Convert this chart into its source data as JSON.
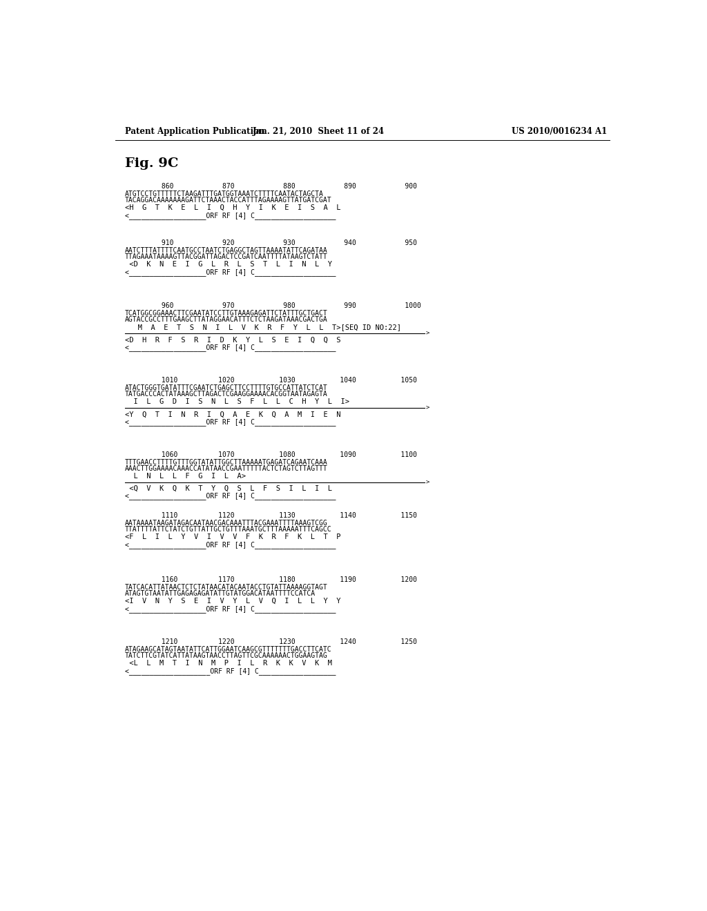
{
  "header_left": "Patent Application Publication",
  "header_mid": "Jan. 21, 2010  Sheet 11 of 24",
  "header_right": "US 2010/0016234 A1",
  "fig_label": "Fig. 9C",
  "background_color": "#ffffff",
  "text_color": "#000000",
  "blocks": [
    {
      "numbers": "         860            870            880            890            900",
      "seq1": "ATGTCCTGTTTTTCTAAGATTTGATGGTAAATCTTTTCAATACTAGCTA",
      "seq2": "TACAGGACAAAAAAAGATTCTAAACTACCATTTAGAAAAGTTATGATCGAT",
      "aa1": "<H  G  T  K  E  L  I  Q  H  Y  I  K  E  I  S  A  L",
      "orf": "<___________________ORF RF [4] C____________________",
      "has_arrow": false
    },
    {
      "numbers": "         910            920            930            940            950",
      "seq1": "AATCTTTATTTTCAATGCCTAATCTGAGGCTAGTTAAAATATTCAGATAA",
      "seq2": "TTAGAAATAAAAGTTACGGATTAGACTCCGATCAATTTTATAAGTCTATT",
      "aa1": " <D  K  N  E  I  G  L  R  L  S  T  L  I  N  L  Y",
      "orf": "<___________________ORF RF [4] C____________________",
      "has_arrow": false
    },
    {
      "numbers": "         960            970            980            990            1000",
      "seq1": "TCATGGCGGAAACTTCGAATATCCTTGTAAAGAGATTCTATTTGCTGACT",
      "seq2": "AGTACCGCCTTTGAAGCTTATAGGAACATTTCTCTAAGATAAACGACTGA",
      "aa1": "   M  A  E  T  S  N  I  L  V  K  R  F  Y  L  L  T>[SEQ ID NO:22]",
      "line_arrow": true,
      "aa2": "<D  H  R  F  S  R  I  D  K  Y  L  S  E  I  Q  Q  S",
      "orf": "<___________________ORF RF [4] C____________________",
      "has_arrow": true
    },
    {
      "numbers": "         1010          1020           1030           1040           1050",
      "seq1": "ATACTGGGTGATATTTCGAATCTGAGCTTCCTTTTGTGCCATTATCTCAT",
      "seq2": "TATGACCCACTATAAAGCTTAGACTCGAAGGAAAACACGGTAATAGAGTA",
      "aa1": "  I  L  G  D  I  S  N  L  S  F  L  L  C  H  Y  L  I>",
      "line_arrow": true,
      "aa2": "<Y  Q  T  I  N  R  I  Q  A  E  K  Q  A  M  I  E  N",
      "orf": "<___________________ORF RF [4] C____________________",
      "has_arrow": true
    },
    {
      "numbers": "         1060          1070           1080           1090           1100",
      "seq1": "TTTGAACCTTTTGTTTGGTATATTGGCTTAAAAATGAGATCAGAATCAAA",
      "seq2": "AAACTTGGAAAACAAACCATATAACCGAATTTTTACTCTAGTCTTAGTTT",
      "aa1": "  L  N  L  L  F  G  I  L  A>",
      "line_arrow": true,
      "aa2": " <Q  V  K  Q  K  T  Y  Q  S  L  F  S  I  L  I  L",
      "orf": "<___________________ORF RF [4] C____________________",
      "has_arrow": true
    },
    {
      "numbers": "         1110          1120           1130           1140           1150",
      "seq1": "AATAAAATAAGATAGACAATAACGACAAATTTACGAAATTTTAAAGTCGG",
      "seq2": "TTATTTTATTCTATCTGTTATTGCTGTTTAAATGCTTTAAAAATTTCAGCC",
      "aa1": "<F  L  I  L  Y  V  I  V  V  F  K  R  F  K  L  T  P",
      "orf": "<___________________ORF RF [4] C____________________",
      "has_arrow": false
    },
    {
      "numbers": "         1160          1170           1180           1190           1200",
      "seq1": "TATCACATTATAACTCTCTATAACATACAATACCTGTATTAAAAGGTAGT",
      "seq2": "ATAGTGTAATATTGAGAGAGATATTGTATGGACATAATTTTCCATCA",
      "aa1": "<I  V  N  Y  S  E  I  V  Y  L  V  Q  I  L  L  Y  Y",
      "orf": "<___________________ORF RF [4] C____________________",
      "has_arrow": false
    },
    {
      "numbers": "         1210          1220           1230           1240           1250",
      "seq1": "ATAGAAGCATAGTAATATTCATTGGAATCAAGCGTTTTTTTGACCTTCATC",
      "seq2": "TATCTTCGTATCATTATAAGTAACCTTAGTTCGCAAAAAACTGGAAGTAG",
      "aa1": " <L  L  M  T  I  N  M  P  I  L  R  K  K  V  K  M",
      "orf": "<____________________ORF RF [4] C___________________",
      "has_arrow": false
    }
  ]
}
